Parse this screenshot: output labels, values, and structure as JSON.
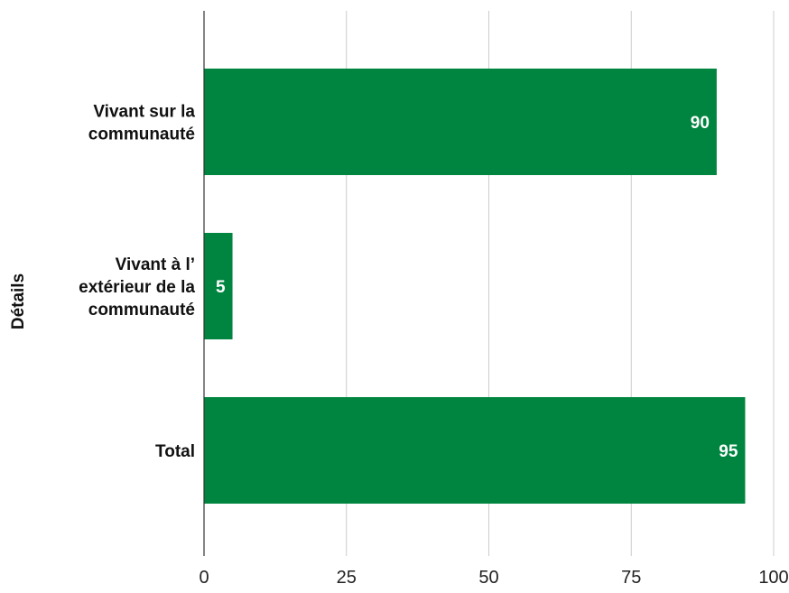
{
  "chart_data": {
    "type": "bar",
    "orientation": "horizontal",
    "categories": [
      [
        "Vivant sur la",
        "communauté"
      ],
      [
        "Vivant à l’",
        "extérieur de la",
        "communauté"
      ],
      [
        "Total"
      ]
    ],
    "values": [
      90,
      5,
      95
    ],
    "data_labels": [
      "90",
      "5",
      "95"
    ],
    "title": "",
    "xlabel": "",
    "ylabel": "Détails",
    "xlim": [
      0,
      100
    ],
    "x_ticks": [
      0,
      25,
      50,
      75,
      100
    ],
    "x_tick_labels": [
      "0",
      "25",
      "50",
      "75",
      "100"
    ],
    "grid": true,
    "legend": "none",
    "colors": {
      "bar": "#008540",
      "grid": "#cccccc",
      "axis": "#333333",
      "data_label": "#ffffff"
    }
  }
}
